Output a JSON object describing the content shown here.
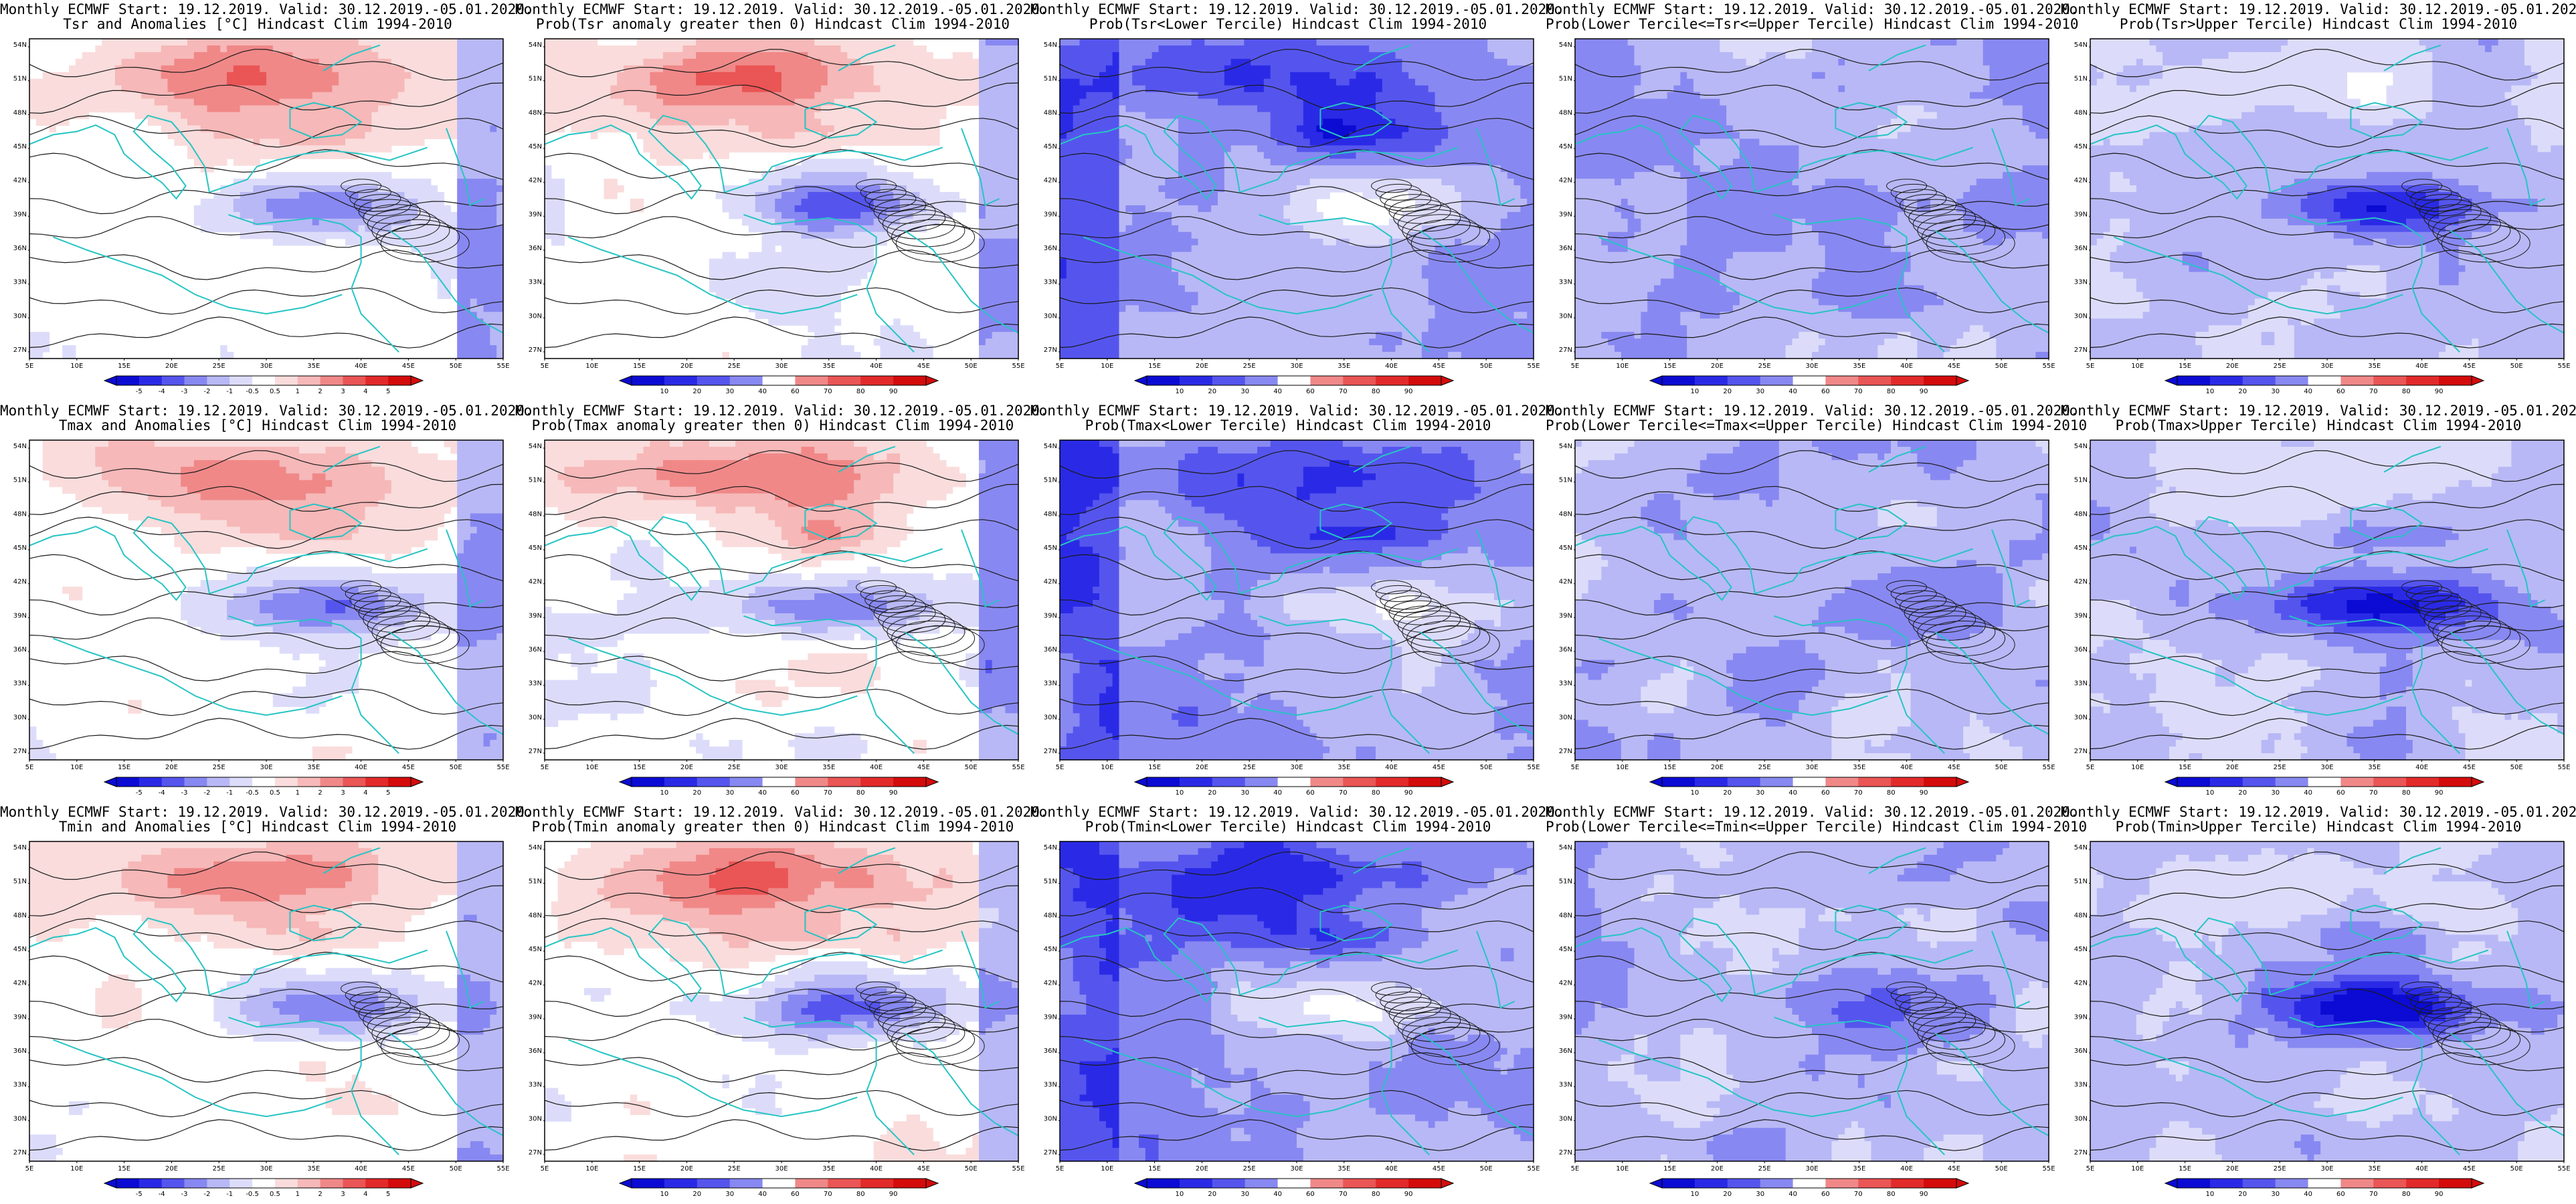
{
  "figure": {
    "title_line1": "Monthly ECMWF Start: 19.12.2019. Valid: 30.12.2019.-05.01.2020.",
    "clim_suffix": "Hindcast Clim 1994-2010",
    "lat_labels": [
      "54N",
      "51N",
      "48N",
      "45N",
      "42N",
      "39N",
      "36N",
      "33N",
      "30N",
      "27N"
    ],
    "lon_labels": [
      "5E",
      "10E",
      "15E",
      "20E",
      "25E",
      "30E",
      "35E",
      "40E",
      "45E",
      "50E",
      "55E"
    ],
    "anomaly_ticks": [
      "-5",
      "-4",
      "-3",
      "-2",
      "-1",
      "-0.5",
      "0.5",
      "1",
      "2",
      "3",
      "4",
      "5"
    ],
    "prob_ticks": [
      "10",
      "20",
      "30",
      "40",
      "60",
      "70",
      "80",
      "90"
    ],
    "colors": {
      "blue_scale": [
        "#0b0bd4",
        "#2a2ae6",
        "#5555ee",
        "#8888f2",
        "#b8b8f6",
        "#dcdcfa"
      ],
      "red_scale": [
        "#fadcdc",
        "#f6b8b8",
        "#f08888",
        "#ea5555",
        "#e22a2a",
        "#d40b0b"
      ],
      "contour": "#1a1a1a",
      "coast": "#27c4c4"
    }
  },
  "panels": [
    {
      "row": 0,
      "col": 0,
      "kind": "anomaly",
      "variable": "Tsr",
      "title_line2": "Tsr and Anomalies [°C] Hindcast Clim 1994-2010"
    },
    {
      "row": 0,
      "col": 1,
      "kind": "prob_anomaly",
      "variable": "Tsr",
      "title_line2": "Prob(Tsr anomaly greater then 0) Hindcast Clim 1994-2010"
    },
    {
      "row": 0,
      "col": 2,
      "kind": "prob_lower",
      "variable": "Tsr",
      "title_line2": "Prob(Tsr<Lower Tercile) Hindcast Clim 1994-2010"
    },
    {
      "row": 0,
      "col": 3,
      "kind": "prob_middle",
      "variable": "Tsr",
      "title_line2": "Prob(Lower Tercile<=Tsr<=Upper Tercile) Hindcast Clim 1994-2010"
    },
    {
      "row": 0,
      "col": 4,
      "kind": "prob_upper",
      "variable": "Tsr",
      "title_line2": "Prob(Tsr>Upper Tercile) Hindcast Clim 1994-2010"
    },
    {
      "row": 1,
      "col": 0,
      "kind": "anomaly",
      "variable": "Tmax",
      "title_line2": "Tmax and Anomalies [°C] Hindcast Clim 1994-2010"
    },
    {
      "row": 1,
      "col": 1,
      "kind": "prob_anomaly",
      "variable": "Tmax",
      "title_line2": "Prob(Tmax anomaly greater then 0) Hindcast Clim 1994-2010"
    },
    {
      "row": 1,
      "col": 2,
      "kind": "prob_lower",
      "variable": "Tmax",
      "title_line2": "Prob(Tmax<Lower Tercile) Hindcast Clim 1994-2010"
    },
    {
      "row": 1,
      "col": 3,
      "kind": "prob_middle",
      "variable": "Tmax",
      "title_line2": "Prob(Lower Tercile<=Tmax<=Upper Tercile) Hindcast Clim 1994-2010"
    },
    {
      "row": 1,
      "col": 4,
      "kind": "prob_upper",
      "variable": "Tmax",
      "title_line2": "Prob(Tmax>Upper Tercile) Hindcast Clim 1994-2010"
    },
    {
      "row": 2,
      "col": 0,
      "kind": "anomaly",
      "variable": "Tmin",
      "title_line2": "Tmin and Anomalies [°C] Hindcast Clim 1994-2010"
    },
    {
      "row": 2,
      "col": 1,
      "kind": "prob_anomaly",
      "variable": "Tmin",
      "title_line2": "Prob(Tmin anomaly greater then 0) Hindcast Clim 1994-2010"
    },
    {
      "row": 2,
      "col": 2,
      "kind": "prob_lower",
      "variable": "Tmin",
      "title_line2": "Prob(Tmin<Lower Tercile) Hindcast Clim 1994-2010"
    },
    {
      "row": 2,
      "col": 3,
      "kind": "prob_middle",
      "variable": "Tmin",
      "title_line2": "Prob(Lower Tercile<=Tmin<=Upper Tercile) Hindcast Clim 1994-2010"
    },
    {
      "row": 2,
      "col": 4,
      "kind": "prob_upper",
      "variable": "Tmin",
      "title_line2": "Prob(Tmin>Upper Tercile) Hindcast Clim 1994-2010"
    }
  ]
}
